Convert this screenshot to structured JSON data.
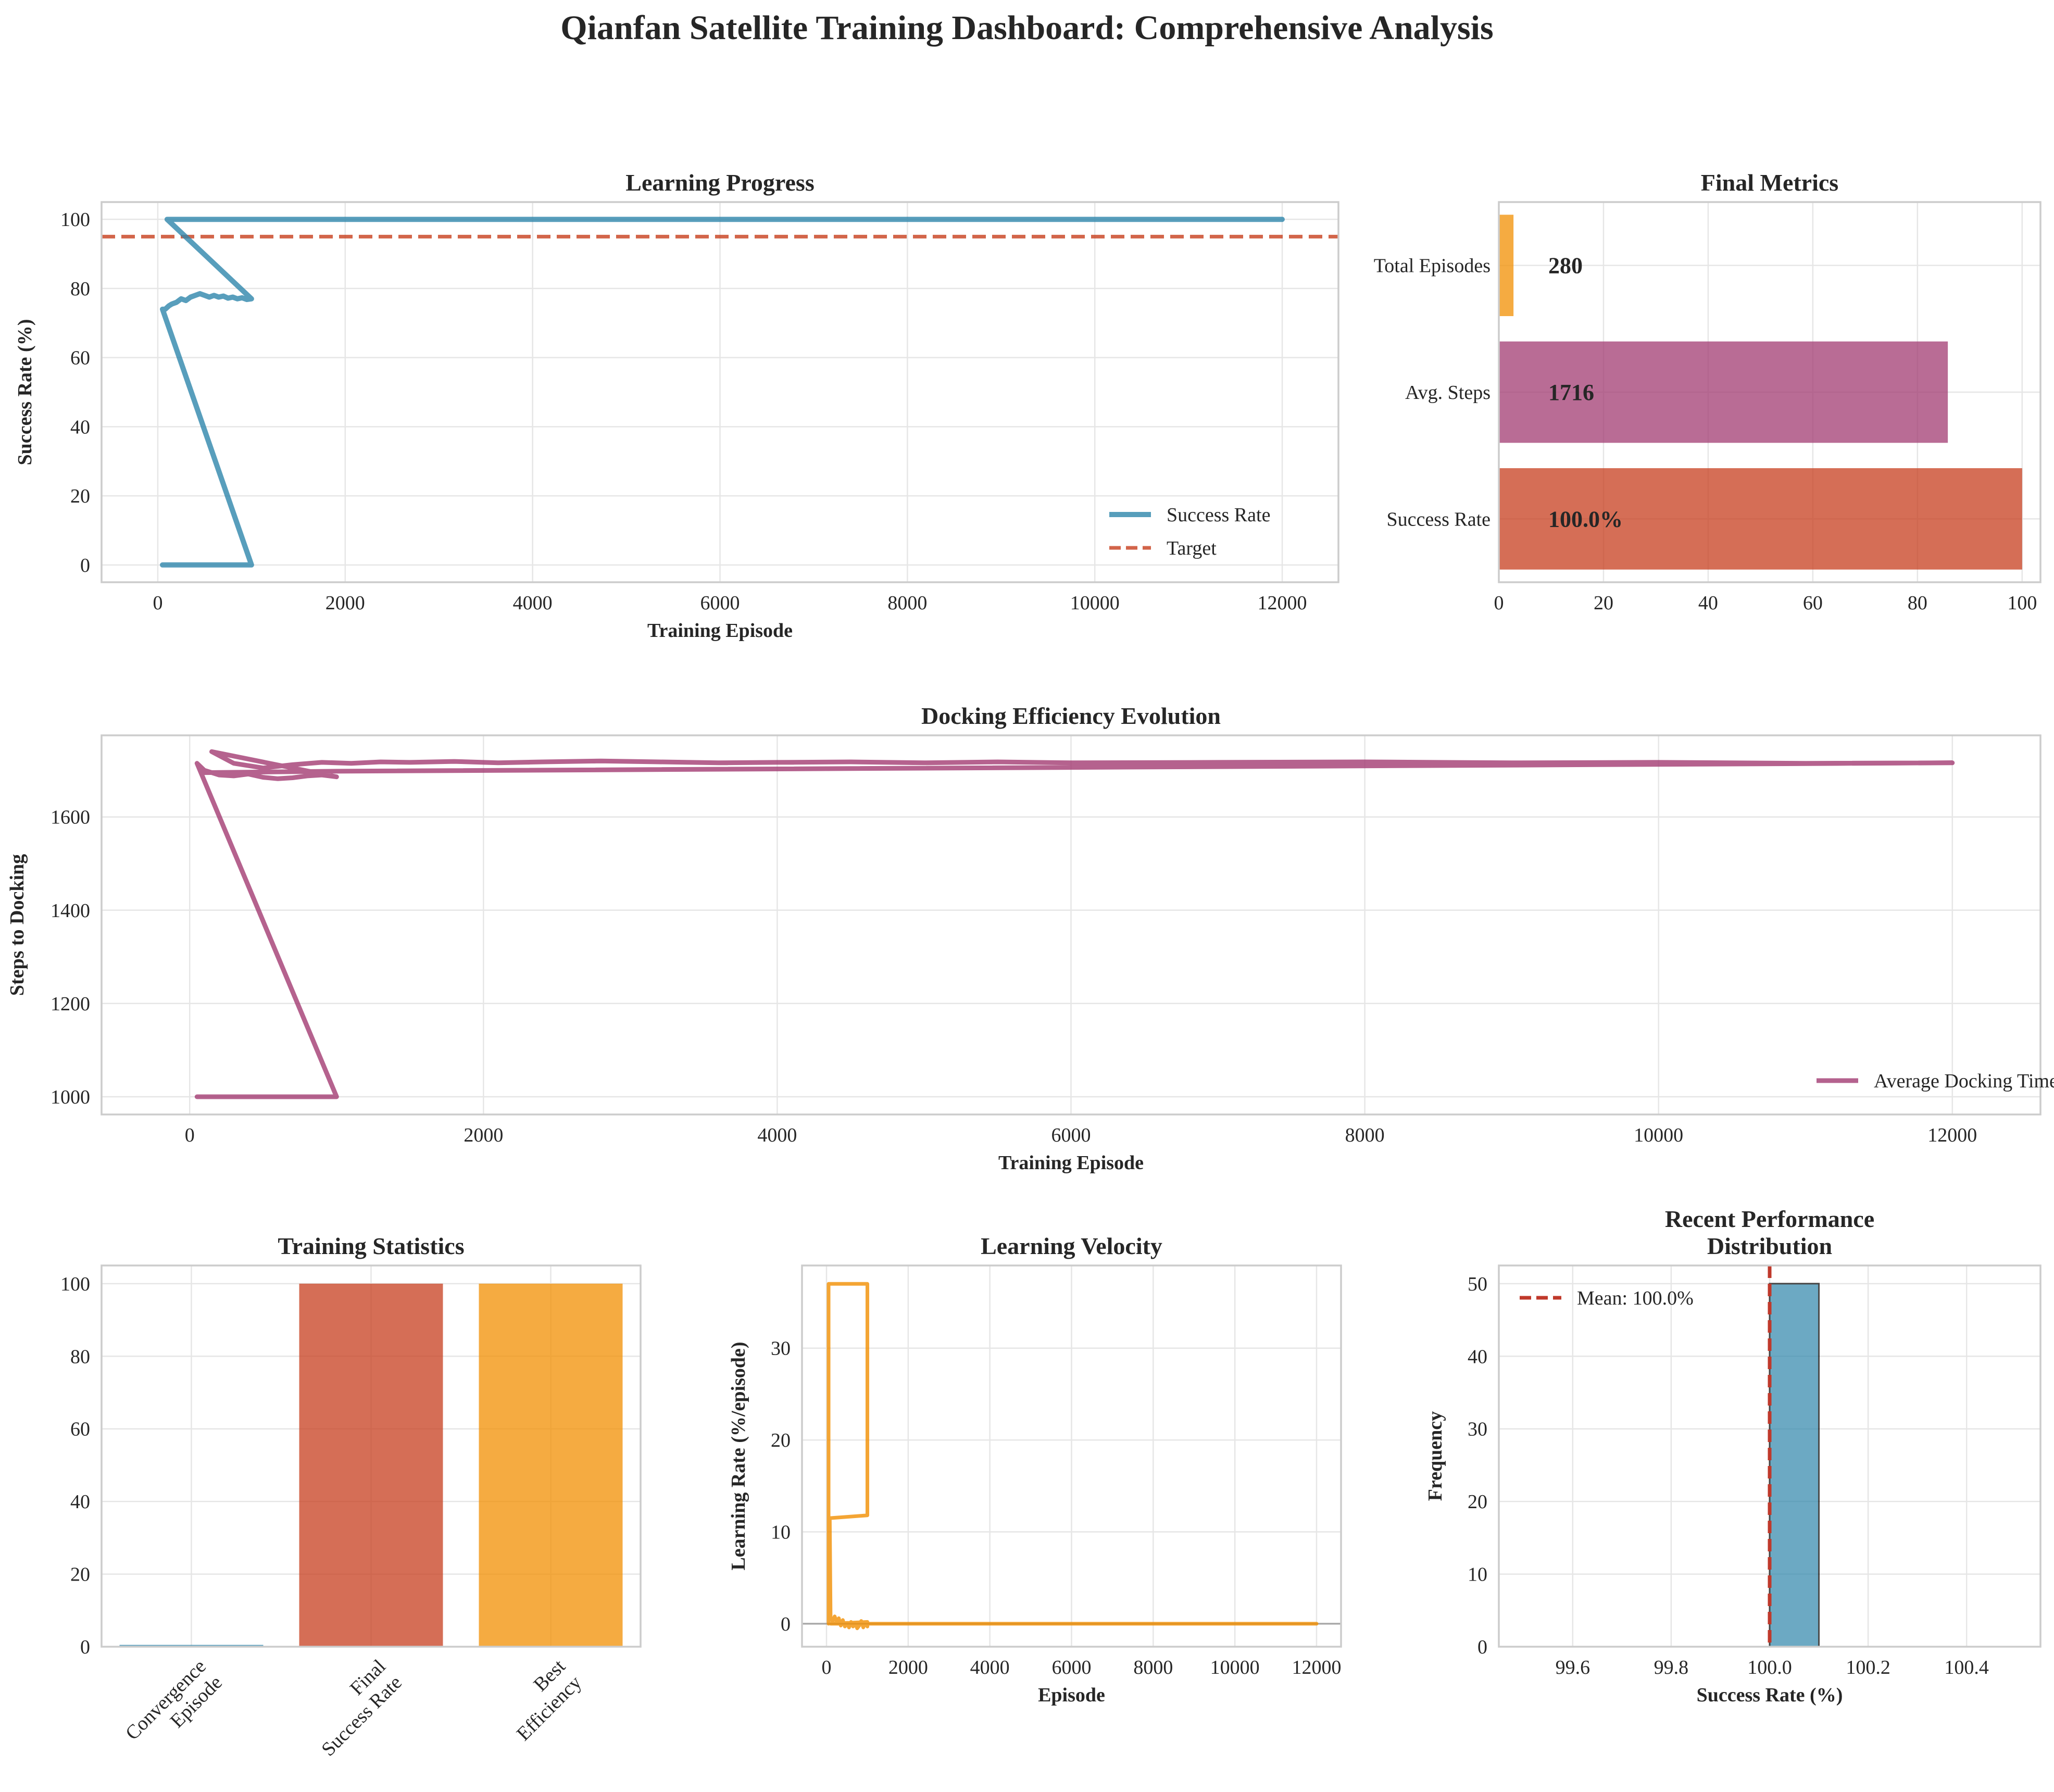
{
  "figure_title": "Qianfan Satellite Training Dashboard: Comprehensive Analysis",
  "colors": {
    "blue": "#2E86AB",
    "magenta": "#A23B72",
    "red_target": "#C73E1D",
    "orange": "#F18F01",
    "red_bar": "#C73E1D",
    "mean_line": "#C0392B"
  },
  "chart_data": [
    {
      "id": "learning_progress",
      "type": "line",
      "title": "Learning Progress",
      "xlabel": "Training Episode",
      "ylabel": "Success Rate (%)",
      "xlim": [
        -600,
        12600
      ],
      "ylim": [
        -5,
        105
      ],
      "xticks": [
        0,
        2000,
        4000,
        6000,
        8000,
        10000,
        12000
      ],
      "yticks": [
        0,
        20,
        40,
        60,
        80,
        100
      ],
      "legend_position": "lower-right",
      "grid": true,
      "series": [
        {
          "name": "Success Rate",
          "style": "solid",
          "color": "#2E86AB",
          "x": [
            50,
            1000,
            50,
            80,
            120,
            150,
            200,
            250,
            300,
            350,
            400,
            450,
            500,
            550,
            600,
            650,
            700,
            750,
            800,
            850,
            900,
            950,
            1000,
            100,
            12000
          ],
          "y": [
            0,
            0,
            74,
            74,
            75,
            75.5,
            76,
            77,
            76.5,
            77.5,
            78,
            78.5,
            78,
            77.5,
            78,
            77.5,
            77.8,
            77.2,
            77.5,
            77,
            77.3,
            76.8,
            77,
            100,
            100
          ]
        },
        {
          "name": "Target",
          "style": "dashed",
          "color": "#C73E1D",
          "x": [
            -600,
            12600
          ],
          "y": [
            95,
            95
          ]
        }
      ]
    },
    {
      "id": "final_metrics",
      "type": "bar",
      "orientation": "horizontal",
      "title": "Final Metrics",
      "xlim": [
        0,
        103.5
      ],
      "xticks": [
        0,
        20,
        40,
        60,
        80,
        100
      ],
      "grid": true,
      "categories": [
        "Success Rate",
        "Avg. Steps",
        "Total Episodes"
      ],
      "values": [
        100,
        85.8,
        2.8
      ],
      "value_labels": [
        "100.0%",
        "1716",
        "280"
      ],
      "colors": [
        "#C73E1D",
        "#A23B72",
        "#F18F01"
      ]
    },
    {
      "id": "docking_efficiency",
      "type": "line",
      "title": "Docking Efficiency Evolution",
      "xlabel": "Training Episode",
      "ylabel": "Steps to Docking",
      "xlim": [
        -600,
        12600
      ],
      "ylim": [
        962,
        1775
      ],
      "xticks": [
        0,
        2000,
        4000,
        6000,
        8000,
        10000,
        12000
      ],
      "yticks": [
        1000,
        1200,
        1400,
        1600
      ],
      "legend_position": "lower-right",
      "grid": true,
      "series": [
        {
          "name": "Average Docking Time",
          "style": "solid",
          "color": "#A23B72",
          "x": [
            50,
            1000,
            50,
            100,
            150,
            200,
            300,
            400,
            500,
            600,
            700,
            800,
            900,
            1000,
            150,
            300,
            500,
            700,
            900,
            1100,
            1300,
            1500,
            1800,
            2100,
            2400,
            2800,
            3200,
            3600,
            4000,
            4500,
            5000,
            5500,
            6000,
            7000,
            8000,
            9000,
            10000,
            11000,
            12000,
            1000,
            100
          ],
          "y": [
            1000,
            1000,
            1715,
            1700,
            1695,
            1690,
            1688,
            1692,
            1685,
            1682,
            1684,
            1688,
            1690,
            1686,
            1740,
            1715,
            1705,
            1712,
            1717,
            1715,
            1718,
            1717,
            1719,
            1716,
            1718,
            1720,
            1718,
            1716,
            1717,
            1718,
            1716,
            1718,
            1716,
            1717,
            1718,
            1716,
            1717,
            1715,
            1716,
            1698,
            1695
          ]
        }
      ]
    },
    {
      "id": "training_statistics",
      "type": "bar",
      "title": "Training Statistics",
      "ylim": [
        0,
        105
      ],
      "yticks": [
        0,
        20,
        40,
        60,
        80,
        100
      ],
      "grid": true,
      "categories": [
        "Convergence\nEpisode",
        "Final\nSuccess Rate",
        "Best\nEfficiency"
      ],
      "values": [
        0.5,
        100,
        100
      ],
      "colors": [
        "#2E86AB",
        "#C73E1D",
        "#F18F01"
      ]
    },
    {
      "id": "learning_velocity",
      "type": "line",
      "title": "Learning Velocity",
      "xlabel": "Episode",
      "ylabel": "Learning Rate (%/episode)",
      "xlim": [
        -600,
        12600
      ],
      "ylim": [
        -2.5,
        39
      ],
      "xticks": [
        0,
        2000,
        4000,
        6000,
        8000,
        10000,
        12000
      ],
      "yticks": [
        0,
        10,
        20,
        30
      ],
      "grid": true,
      "series": [
        {
          "name": "",
          "style": "solid",
          "color": "#F18F01",
          "x": [
            50,
            50,
            1000,
            1000,
            80,
            100,
            150,
            200,
            250,
            300,
            350,
            400,
            450,
            500,
            550,
            600,
            650,
            700,
            750,
            800,
            850,
            900,
            950,
            1000,
            1000,
            100,
            12000
          ],
          "y": [
            0,
            37,
            37,
            11.8,
            11.5,
            0.5,
            0.3,
            0.8,
            0.2,
            0.6,
            -0.2,
            0.4,
            -0.3,
            0.1,
            -0.4,
            0.2,
            -0.3,
            0.1,
            -0.5,
            -0.2,
            0.3,
            -0.4,
            0.1,
            -0.3,
            0.2,
            0,
            0
          ]
        },
        {
          "name": "",
          "style": "solid",
          "color": "#808080",
          "x": [
            -600,
            12600
          ],
          "y": [
            0,
            0
          ]
        }
      ]
    },
    {
      "id": "recent_performance",
      "type": "bar",
      "title": "Recent Performance\nDistribution",
      "xlabel": "Success Rate (%)",
      "ylabel": "Frequency",
      "xlim": [
        99.45,
        100.55
      ],
      "ylim": [
        0,
        52.5
      ],
      "xticks": [
        99.6,
        99.8,
        100.0,
        100.2,
        100.4
      ],
      "yticks": [
        0,
        10,
        20,
        30,
        40,
        50
      ],
      "legend_position": "upper-left",
      "grid": true,
      "bins": [
        [
          100.0,
          100.1
        ]
      ],
      "values": [
        50
      ],
      "mean_label": "Mean: 100.0%",
      "mean": 100.0
    }
  ]
}
